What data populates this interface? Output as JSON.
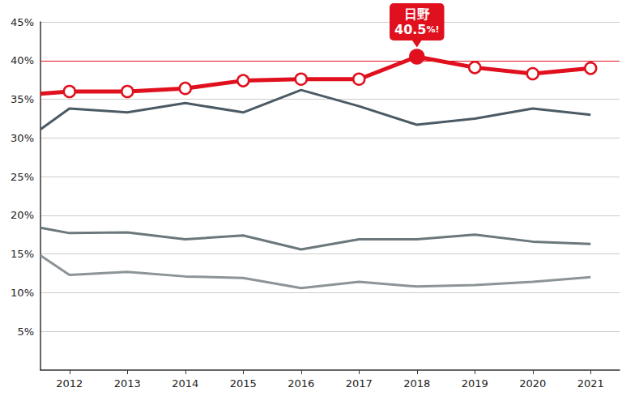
{
  "chart_data": {
    "type": "line",
    "x": [
      2011.5,
      2012,
      2013,
      2014,
      2015,
      2016,
      2017,
      2018,
      2019,
      2020,
      2021
    ],
    "xlim": [
      2011.5,
      2021.5
    ],
    "xticks": [
      2012,
      2013,
      2014,
      2015,
      2016,
      2017,
      2018,
      2019,
      2020,
      2021
    ],
    "ylim": [
      0,
      45
    ],
    "yticks": [
      {
        "value": 5,
        "label": "5%"
      },
      {
        "value": 10,
        "label": "10%"
      },
      {
        "value": 15,
        "label": "15%"
      },
      {
        "value": 20,
        "label": "20%"
      },
      {
        "value": 25,
        "label": "25%"
      },
      {
        "value": 30,
        "label": "30%"
      },
      {
        "value": 35,
        "label": "35%"
      },
      {
        "value": 40,
        "label": "40%"
      },
      {
        "value": 45,
        "label": "45%"
      }
    ],
    "grid": true,
    "series": [
      {
        "color": "#e0101e",
        "marker": "circle",
        "values": [
          35.7,
          36.0,
          36.0,
          36.4,
          37.4,
          37.6,
          37.6,
          40.5,
          39.1,
          38.3,
          39.0
        ]
      },
      {
        "color": "#4b5b66",
        "values": [
          31.1,
          33.8,
          33.3,
          34.5,
          33.3,
          36.2,
          34.1,
          31.7,
          32.5,
          33.8,
          33.0
        ]
      },
      {
        "color": "#6b777c",
        "values": [
          18.4,
          17.7,
          17.8,
          16.9,
          17.4,
          15.6,
          16.9,
          16.9,
          17.5,
          16.6,
          16.3
        ]
      },
      {
        "color": "#8c9497",
        "values": [
          14.8,
          12.3,
          12.7,
          12.1,
          11.9,
          10.6,
          11.4,
          10.8,
          11.0,
          11.4,
          12.0
        ]
      }
    ],
    "annotations": [
      {
        "type": "hline",
        "y": 40,
        "color": "#e0101e"
      },
      {
        "type": "callout",
        "x": 2018,
        "y": 40.5,
        "lines": [
          "日野",
          "40.5%!"
        ],
        "color": "#e0101e"
      }
    ]
  }
}
